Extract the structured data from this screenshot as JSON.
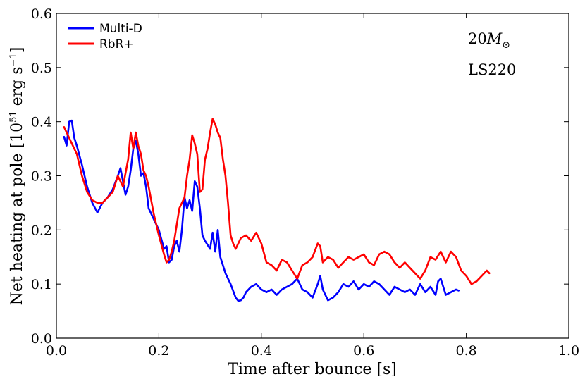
{
  "chart_data": {
    "type": "line",
    "title": "",
    "xlabel": "Time after bounce [s]",
    "ylabel_parts": {
      "pre": "Net heating at pole [10",
      "exp1": "51",
      "mid": " erg s",
      "exp2": "−1",
      "post": "]"
    },
    "xlim": [
      0.0,
      1.0
    ],
    "ylim": [
      0.0,
      0.6
    ],
    "xticks": [
      0.0,
      0.2,
      0.4,
      0.6,
      0.8,
      1.0
    ],
    "yticks": [
      0.0,
      0.1,
      0.2,
      0.3,
      0.4,
      0.5,
      0.6
    ],
    "xtick_labels": [
      "0.0",
      "0.2",
      "0.4",
      "0.6",
      "0.8",
      "1.0"
    ],
    "ytick_labels": [
      "0.0",
      "0.1",
      "0.2",
      "0.3",
      "0.4",
      "0.5",
      "0.6"
    ],
    "legend_position": "top-left",
    "annotations": {
      "mass_value": "20",
      "mass_symbol": "M",
      "mass_subscript": "⊙",
      "eos": "LS220"
    },
    "series": [
      {
        "name": "Multi-D",
        "color": "#0000ff",
        "x": [
          0.015,
          0.02,
          0.025,
          0.03,
          0.035,
          0.04,
          0.05,
          0.06,
          0.07,
          0.08,
          0.09,
          0.1,
          0.11,
          0.12,
          0.125,
          0.13,
          0.135,
          0.14,
          0.145,
          0.15,
          0.155,
          0.16,
          0.165,
          0.17,
          0.175,
          0.18,
          0.19,
          0.2,
          0.21,
          0.215,
          0.22,
          0.225,
          0.23,
          0.235,
          0.24,
          0.245,
          0.25,
          0.255,
          0.26,
          0.265,
          0.27,
          0.275,
          0.28,
          0.285,
          0.29,
          0.3,
          0.305,
          0.31,
          0.315,
          0.32,
          0.33,
          0.34,
          0.35,
          0.355,
          0.36,
          0.365,
          0.37,
          0.38,
          0.39,
          0.4,
          0.41,
          0.42,
          0.43,
          0.44,
          0.45,
          0.46,
          0.47,
          0.48,
          0.49,
          0.5,
          0.51,
          0.515,
          0.52,
          0.53,
          0.54,
          0.55,
          0.56,
          0.57,
          0.58,
          0.59,
          0.6,
          0.61,
          0.62,
          0.63,
          0.64,
          0.65,
          0.66,
          0.67,
          0.68,
          0.69,
          0.7,
          0.71,
          0.72,
          0.73,
          0.74,
          0.745,
          0.75,
          0.76,
          0.77,
          0.78,
          0.785
        ],
        "y": [
          0.372,
          0.356,
          0.4,
          0.402,
          0.37,
          0.355,
          0.32,
          0.28,
          0.25,
          0.232,
          0.25,
          0.26,
          0.275,
          0.3,
          0.314,
          0.29,
          0.265,
          0.28,
          0.31,
          0.35,
          0.365,
          0.34,
          0.3,
          0.305,
          0.28,
          0.24,
          0.22,
          0.2,
          0.165,
          0.17,
          0.14,
          0.145,
          0.17,
          0.18,
          0.16,
          0.2,
          0.26,
          0.24,
          0.255,
          0.235,
          0.29,
          0.28,
          0.24,
          0.19,
          0.18,
          0.165,
          0.195,
          0.16,
          0.2,
          0.15,
          0.12,
          0.1,
          0.075,
          0.069,
          0.07,
          0.075,
          0.085,
          0.095,
          0.1,
          0.09,
          0.085,
          0.09,
          0.08,
          0.09,
          0.095,
          0.1,
          0.11,
          0.09,
          0.085,
          0.075,
          0.1,
          0.115,
          0.09,
          0.07,
          0.075,
          0.085,
          0.1,
          0.095,
          0.105,
          0.09,
          0.1,
          0.095,
          0.105,
          0.1,
          0.09,
          0.08,
          0.095,
          0.09,
          0.085,
          0.09,
          0.08,
          0.1,
          0.085,
          0.095,
          0.08,
          0.105,
          0.11,
          0.08,
          0.085,
          0.09,
          0.088
        ]
      },
      {
        "name": "RbR+",
        "color": "#ff0000",
        "x": [
          0.015,
          0.02,
          0.03,
          0.04,
          0.05,
          0.06,
          0.07,
          0.08,
          0.09,
          0.1,
          0.11,
          0.12,
          0.13,
          0.14,
          0.145,
          0.15,
          0.155,
          0.16,
          0.165,
          0.17,
          0.175,
          0.18,
          0.19,
          0.2,
          0.21,
          0.215,
          0.22,
          0.225,
          0.23,
          0.24,
          0.25,
          0.255,
          0.26,
          0.265,
          0.27,
          0.275,
          0.28,
          0.285,
          0.29,
          0.295,
          0.3,
          0.305,
          0.31,
          0.315,
          0.32,
          0.325,
          0.33,
          0.335,
          0.34,
          0.345,
          0.35,
          0.36,
          0.37,
          0.38,
          0.39,
          0.4,
          0.41,
          0.42,
          0.43,
          0.44,
          0.45,
          0.46,
          0.47,
          0.48,
          0.49,
          0.5,
          0.51,
          0.515,
          0.52,
          0.53,
          0.54,
          0.55,
          0.56,
          0.57,
          0.58,
          0.59,
          0.6,
          0.61,
          0.62,
          0.63,
          0.64,
          0.65,
          0.66,
          0.67,
          0.68,
          0.69,
          0.7,
          0.71,
          0.72,
          0.73,
          0.74,
          0.75,
          0.76,
          0.77,
          0.78,
          0.79,
          0.8,
          0.81,
          0.82,
          0.83,
          0.84,
          0.845
        ],
        "y": [
          0.39,
          0.38,
          0.36,
          0.34,
          0.3,
          0.27,
          0.255,
          0.25,
          0.25,
          0.26,
          0.27,
          0.3,
          0.28,
          0.33,
          0.38,
          0.35,
          0.38,
          0.355,
          0.34,
          0.31,
          0.3,
          0.28,
          0.23,
          0.19,
          0.155,
          0.14,
          0.145,
          0.16,
          0.18,
          0.24,
          0.26,
          0.3,
          0.33,
          0.375,
          0.36,
          0.34,
          0.27,
          0.275,
          0.33,
          0.35,
          0.38,
          0.405,
          0.395,
          0.38,
          0.37,
          0.33,
          0.3,
          0.25,
          0.19,
          0.175,
          0.165,
          0.185,
          0.19,
          0.18,
          0.195,
          0.175,
          0.14,
          0.135,
          0.125,
          0.145,
          0.14,
          0.125,
          0.11,
          0.135,
          0.14,
          0.15,
          0.175,
          0.17,
          0.14,
          0.15,
          0.145,
          0.13,
          0.14,
          0.15,
          0.145,
          0.15,
          0.155,
          0.14,
          0.135,
          0.155,
          0.16,
          0.155,
          0.14,
          0.13,
          0.14,
          0.13,
          0.12,
          0.11,
          0.125,
          0.15,
          0.145,
          0.16,
          0.14,
          0.16,
          0.15,
          0.125,
          0.115,
          0.1,
          0.105,
          0.115,
          0.125,
          0.12
        ]
      }
    ]
  }
}
